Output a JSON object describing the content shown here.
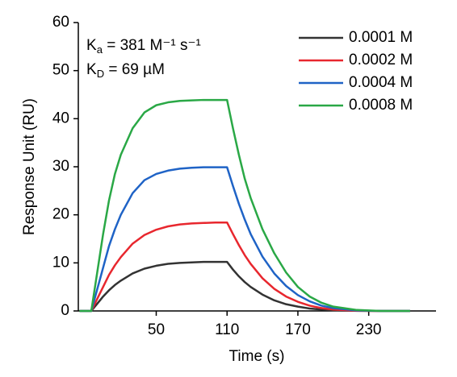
{
  "chart_data": {
    "type": "line",
    "x_label": "Time (s)",
    "y_label": "Response Unit (RU)",
    "annotations": [
      {
        "symbol": "K",
        "subscript": "a",
        "rest": " = 381 M⁻¹ s⁻¹"
      },
      {
        "symbol": "K",
        "subscript": "D",
        "rest": " = 69 µM"
      }
    ],
    "x": [
      -15,
      -5,
      0,
      5,
      10,
      15,
      20,
      30,
      40,
      50,
      60,
      70,
      80,
      90,
      100,
      110,
      115,
      120,
      125,
      130,
      140,
      150,
      160,
      170,
      180,
      190,
      200,
      220,
      240,
      265
    ],
    "series": [
      {
        "name": "0.0001 M",
        "color": "#333333",
        "values": [
          0,
          0,
          1.5,
          3,
          4.3,
          5.4,
          6.3,
          7.8,
          8.8,
          9.4,
          9.8,
          10,
          10.1,
          10.2,
          10.2,
          10.2,
          8.6,
          7.2,
          6,
          5,
          3.4,
          2.2,
          1.4,
          0.9,
          0.5,
          0.3,
          0.15,
          0.02,
          0,
          0
        ]
      },
      {
        "name": "0.0002 M",
        "color": "#e8272e",
        "values": [
          0,
          0,
          2.5,
          5,
          7.5,
          9.5,
          11.2,
          14,
          15.8,
          16.9,
          17.6,
          18,
          18.2,
          18.3,
          18.4,
          18.4,
          16,
          13.7,
          11.6,
          9.8,
          6.8,
          4.6,
          3,
          1.9,
          1.1,
          0.6,
          0.3,
          0.05,
          0,
          0
        ]
      },
      {
        "name": "0.0004 M",
        "color": "#1f63c6",
        "values": [
          0,
          0,
          4.5,
          9,
          13.5,
          17,
          20,
          24.5,
          27.2,
          28.5,
          29.2,
          29.6,
          29.8,
          29.9,
          29.9,
          29.9,
          26,
          22.3,
          19,
          16,
          11.3,
          7.8,
          5.2,
          3.3,
          2,
          1.1,
          0.6,
          0.1,
          0,
          0
        ]
      },
      {
        "name": "0.0008 M",
        "color": "#2aa846",
        "values": [
          0,
          0,
          8,
          16,
          23,
          28.5,
          32.5,
          38,
          41.3,
          42.8,
          43.4,
          43.7,
          43.8,
          43.9,
          43.9,
          43.9,
          38,
          32.5,
          27.5,
          23.5,
          17,
          12,
          8,
          5,
          3,
          1.7,
          0.9,
          0.2,
          0,
          0
        ]
      }
    ],
    "xlim": [
      -16,
      287
    ],
    "ylim": [
      0,
      60
    ],
    "xticks": [
      50,
      110,
      170,
      230
    ],
    "yticks": [
      0,
      10,
      20,
      30,
      40,
      50,
      60
    ],
    "legend": "top-right"
  }
}
